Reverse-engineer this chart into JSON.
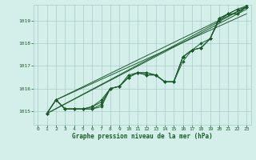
{
  "title": "Graphe pression niveau de la mer (hPa)",
  "background_color": "#d4eeea",
  "grid_color": "#aaccc8",
  "line_color": "#1a5c2a",
  "marker_color": "#1a5c2a",
  "xlim": [
    -0.5,
    23.5
  ],
  "ylim": [
    1014.4,
    1019.7
  ],
  "yticks": [
    1015,
    1016,
    1017,
    1018,
    1019
  ],
  "xticks": [
    0,
    1,
    2,
    3,
    4,
    5,
    6,
    7,
    8,
    9,
    10,
    11,
    12,
    13,
    14,
    15,
    16,
    17,
    18,
    19,
    20,
    21,
    22,
    23
  ],
  "x_hours": [
    1,
    2,
    3,
    4,
    5,
    6,
    7,
    8,
    9,
    10,
    11,
    12,
    13,
    14,
    15,
    16,
    17,
    18,
    19,
    20,
    21,
    22,
    23
  ],
  "series_data": [
    [
      1014.9,
      1015.5,
      1015.1,
      1015.1,
      1015.1,
      1015.1,
      1015.2,
      1016.0,
      1016.1,
      1016.5,
      1016.7,
      1016.7,
      1016.6,
      1016.3,
      1016.3,
      1017.4,
      1017.7,
      1017.8,
      1018.2,
      1019.1,
      1019.3,
      1019.5,
      1019.6
    ],
    [
      1014.9,
      1015.5,
      1015.1,
      1015.1,
      1015.1,
      1015.1,
      1015.3,
      1016.0,
      1016.1,
      1016.5,
      1016.7,
      1016.7,
      1016.6,
      1016.3,
      1016.3,
      1017.4,
      1017.7,
      1018.0,
      1018.2,
      1019.1,
      1019.3,
      1019.5,
      1019.65
    ],
    [
      1014.9,
      1015.5,
      1015.1,
      1015.1,
      1015.1,
      1015.2,
      1015.5,
      1016.0,
      1016.1,
      1016.5,
      1016.7,
      1016.6,
      1016.6,
      1016.3,
      1016.3,
      1017.2,
      1017.7,
      1017.8,
      1018.2,
      1019.0,
      1019.3,
      1019.3,
      1019.6
    ],
    [
      1014.9,
      1015.5,
      1015.1,
      1015.1,
      1015.1,
      1015.2,
      1015.4,
      1016.0,
      1016.1,
      1016.6,
      1016.7,
      1016.6,
      1016.6,
      1016.3,
      1016.3,
      1017.4,
      1017.7,
      1017.8,
      1018.2,
      1019.1,
      1019.3,
      1019.3,
      1019.6
    ]
  ],
  "straight_lines": [
    {
      "x": [
        1,
        23
      ],
      "y": [
        1014.9,
        1019.6
      ]
    },
    {
      "x": [
        1,
        23
      ],
      "y": [
        1014.9,
        1019.5
      ]
    },
    {
      "x": [
        2,
        23
      ],
      "y": [
        1015.5,
        1019.6
      ]
    },
    {
      "x": [
        2,
        23
      ],
      "y": [
        1015.5,
        1019.3
      ]
    }
  ]
}
